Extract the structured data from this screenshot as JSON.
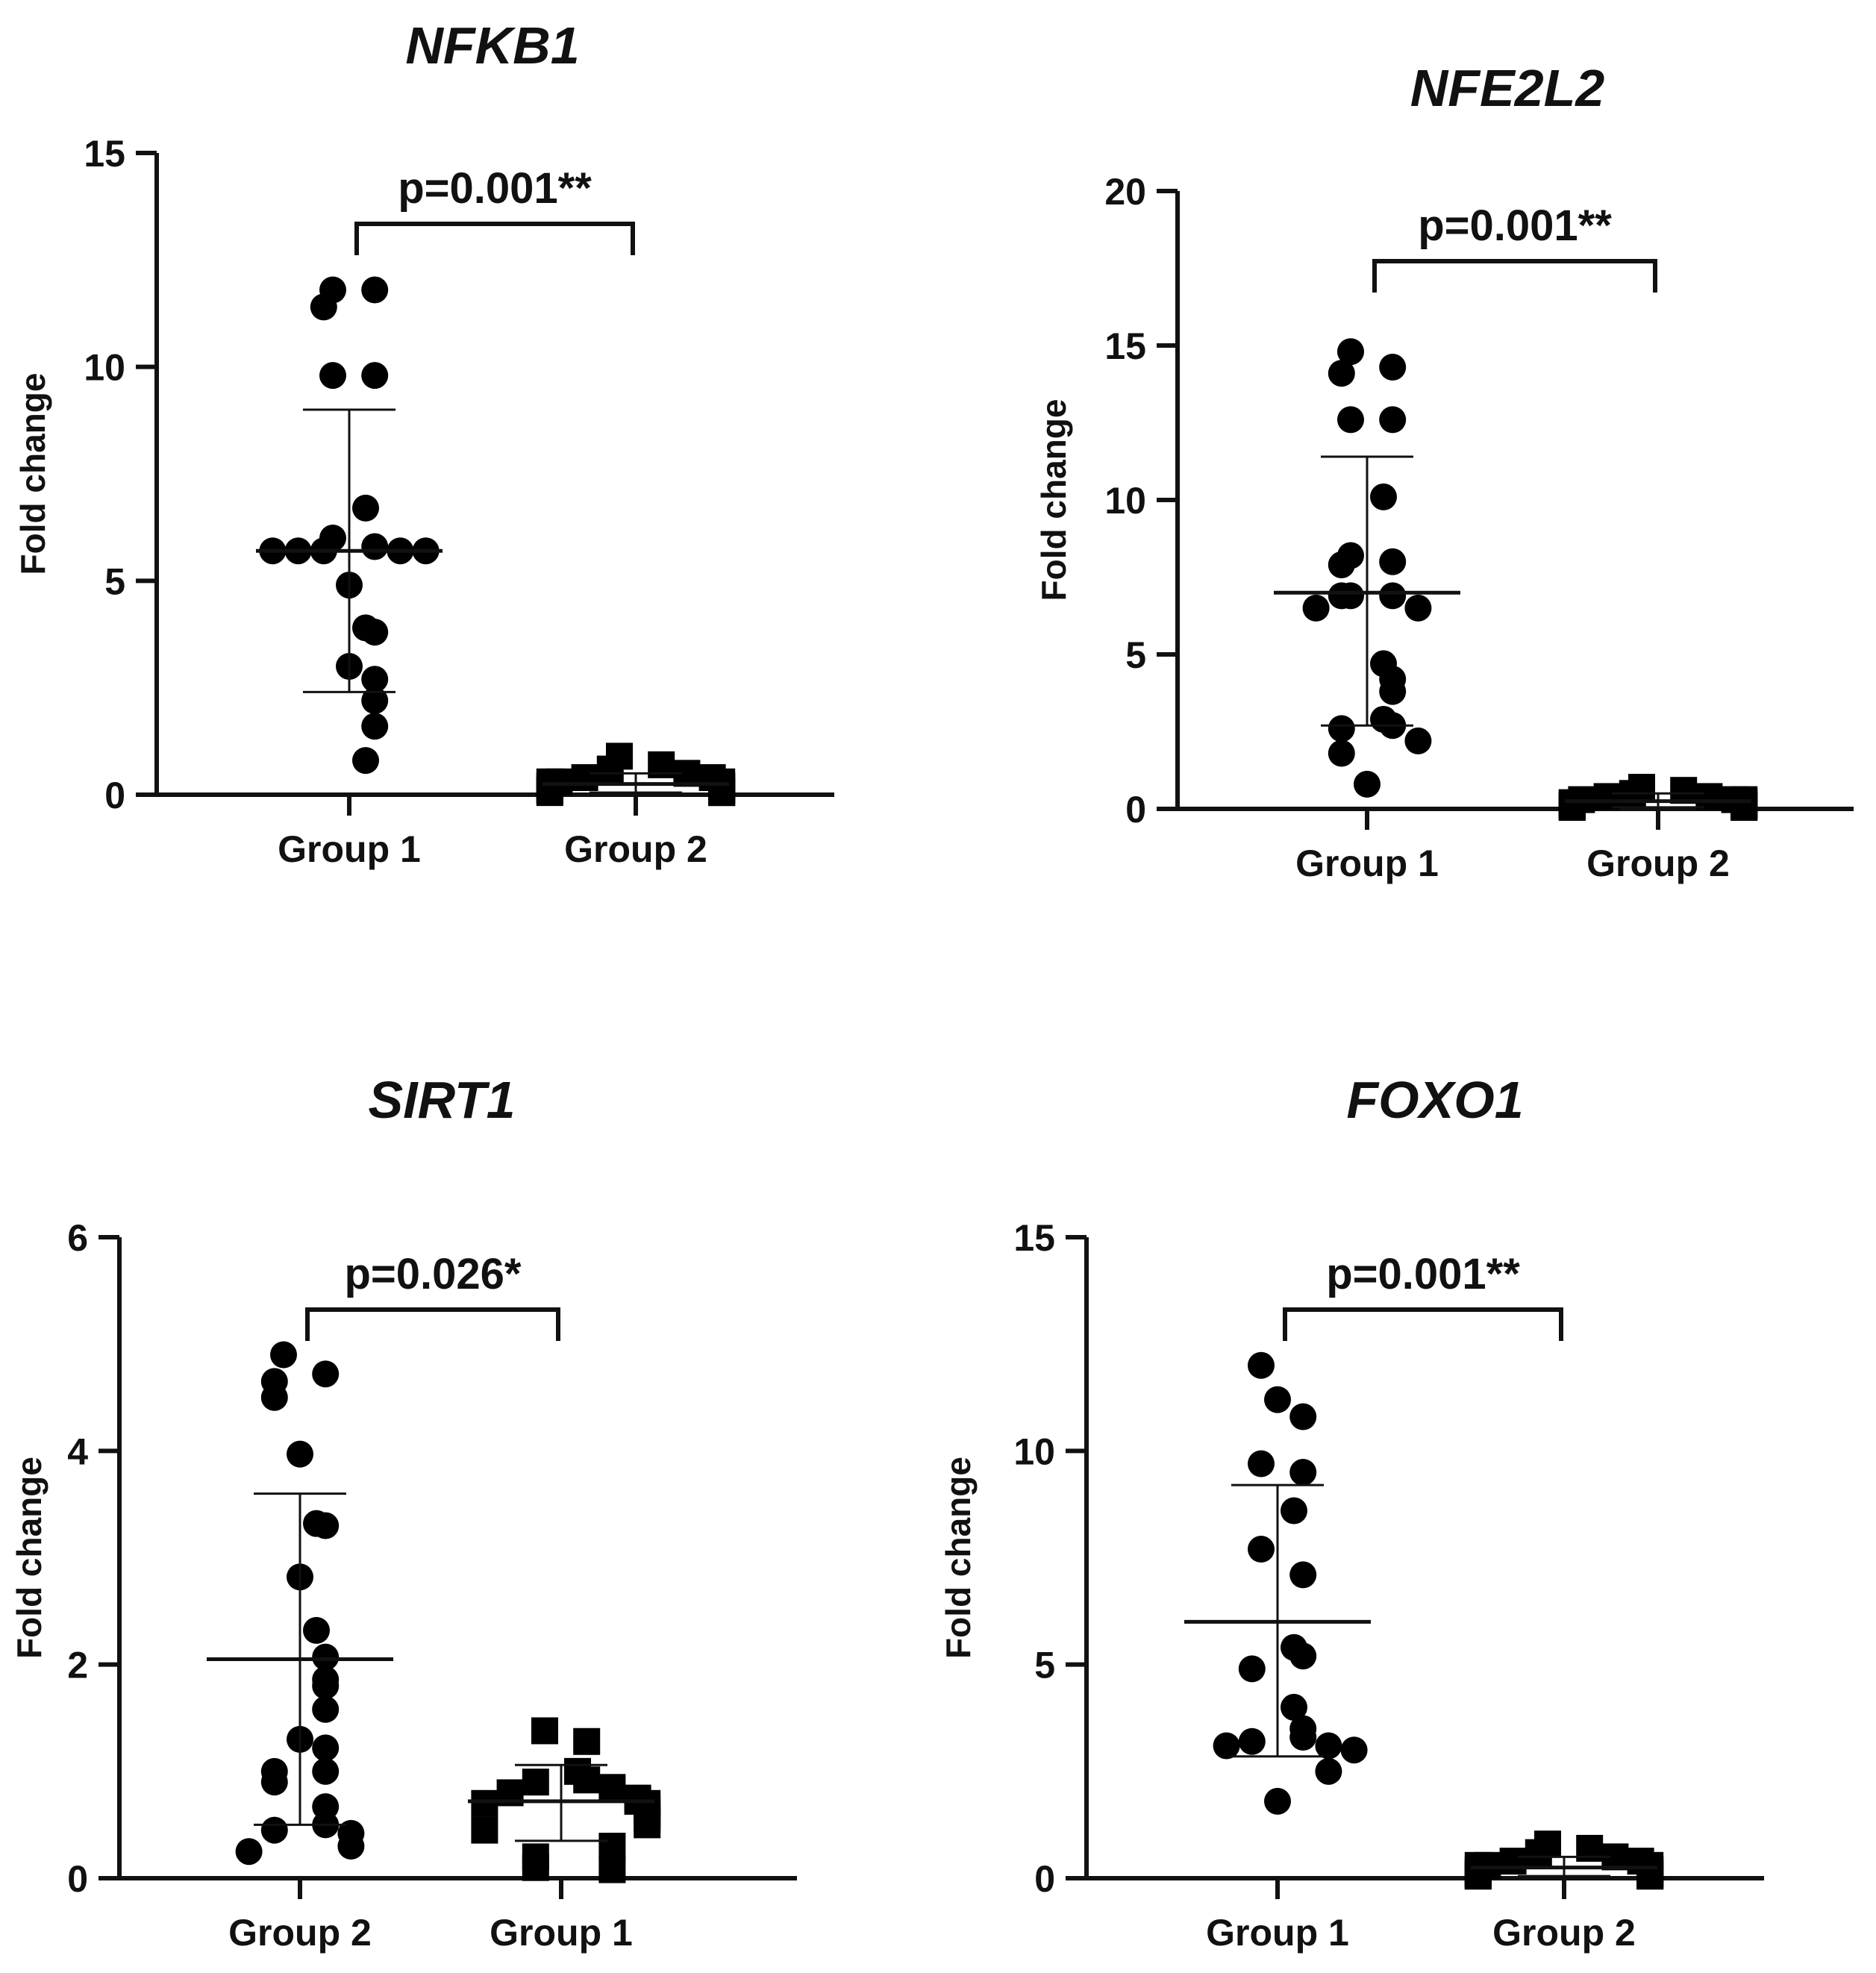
{
  "chart_data": [
    {
      "type": "scatter",
      "title": "NFKB1",
      "ylabel": "Fold change",
      "ylim": [
        0,
        15
      ],
      "yticks": [
        0,
        5,
        10,
        15
      ],
      "categories": [
        "Group 1",
        "Group 2"
      ],
      "annotation": "p=0.001**",
      "series": [
        {
          "name": "Group 1",
          "marker": "circle",
          "values": [
            11.8,
            11.8,
            11.4,
            9.8,
            9.8,
            6.7,
            6.0,
            5.8,
            5.7,
            5.7,
            5.7,
            5.7,
            5.7,
            4.9,
            3.9,
            3.8,
            3.0,
            2.7,
            2.2,
            1.6,
            0.8
          ],
          "mean": 5.7,
          "sd_upper": 9.0,
          "sd_lower": 2.4
        },
        {
          "name": "Group 2",
          "marker": "square",
          "values": [
            0.9,
            0.7,
            0.6,
            0.5,
            0.4,
            0.4,
            0.3,
            0.3,
            0.3,
            0.2,
            0.2,
            0.2,
            0.2,
            0.1,
            0.1,
            0.1,
            0.1,
            0.05,
            0.05,
            0.05
          ],
          "mean": 0.25,
          "sd_upper": 0.5,
          "sd_lower": 0.05
        }
      ]
    },
    {
      "type": "scatter",
      "title": "NFE2L2",
      "ylabel": "Fold change",
      "ylim": [
        0,
        20
      ],
      "yticks": [
        0,
        5,
        10,
        15,
        20
      ],
      "categories": [
        "Group 1",
        "Group 2"
      ],
      "annotation": "p=0.001**",
      "series": [
        {
          "name": "Group 1",
          "marker": "circle",
          "values": [
            14.8,
            14.3,
            14.1,
            12.6,
            12.6,
            10.1,
            8.2,
            8.0,
            7.9,
            6.9,
            6.9,
            6.9,
            6.5,
            6.5,
            4.7,
            4.2,
            3.8,
            2.9,
            2.7,
            2.6,
            2.2,
            1.8,
            0.8
          ],
          "mean": 7.0,
          "sd_upper": 11.4,
          "sd_lower": 2.7
        },
        {
          "name": "Group 2",
          "marker": "square",
          "values": [
            0.7,
            0.6,
            0.5,
            0.4,
            0.4,
            0.3,
            0.3,
            0.3,
            0.2,
            0.2,
            0.2,
            0.2,
            0.1,
            0.1,
            0.1,
            0.1,
            0.05,
            0.05,
            0.05,
            0.05
          ],
          "mean": 0.25,
          "sd_upper": 0.5,
          "sd_lower": 0.05
        }
      ]
    },
    {
      "type": "scatter",
      "title": "SIRT1",
      "ylabel": "Fold change",
      "ylim": [
        0,
        6
      ],
      "yticks": [
        0,
        2,
        4,
        6
      ],
      "categories": [
        "Group 2",
        "Group 1"
      ],
      "annotation": "p=0.026*",
      "series": [
        {
          "name": "Group 2",
          "marker": "circle",
          "values": [
            4.9,
            4.72,
            4.65,
            4.5,
            3.97,
            3.32,
            3.3,
            2.82,
            2.32,
            2.07,
            1.86,
            1.8,
            1.58,
            1.3,
            1.22,
            1.0,
            1.0,
            0.9,
            0.67,
            0.5,
            0.45,
            0.42,
            0.3,
            0.25
          ],
          "mean": 2.05,
          "sd_upper": 3.6,
          "sd_lower": 0.5
        },
        {
          "name": "Group 1",
          "marker": "square",
          "values": [
            1.38,
            1.28,
            1.0,
            0.92,
            0.9,
            0.85,
            0.8,
            0.75,
            0.72,
            0.7,
            0.7,
            0.65,
            0.6,
            0.55,
            0.5,
            0.45,
            0.3,
            0.2,
            0.1,
            0.08
          ],
          "mean": 0.72,
          "sd_upper": 1.06,
          "sd_lower": 0.35
        }
      ]
    },
    {
      "type": "scatter",
      "title": "FOXO1",
      "ylabel": "Fold change",
      "ylim": [
        0,
        15
      ],
      "yticks": [
        0,
        5,
        10,
        15
      ],
      "categories": [
        "Group 1",
        "Group 2"
      ],
      "annotation": "p=0.001**",
      "series": [
        {
          "name": "Group 1",
          "marker": "circle",
          "values": [
            12.0,
            11.2,
            10.8,
            9.7,
            9.5,
            8.6,
            7.7,
            7.1,
            5.4,
            5.2,
            4.9,
            4.0,
            3.5,
            3.3,
            3.2,
            3.1,
            3.1,
            3.0,
            2.5,
            1.8
          ],
          "mean": 6.0,
          "sd_upper": 9.2,
          "sd_lower": 2.85
        },
        {
          "name": "Group 2",
          "marker": "square",
          "values": [
            0.8,
            0.7,
            0.6,
            0.5,
            0.4,
            0.4,
            0.3,
            0.3,
            0.3,
            0.2,
            0.2,
            0.2,
            0.1,
            0.1,
            0.1,
            0.1,
            0.05,
            0.05,
            0.05,
            0.05
          ],
          "mean": 0.25,
          "sd_upper": 0.5,
          "sd_lower": 0.05
        }
      ]
    }
  ]
}
